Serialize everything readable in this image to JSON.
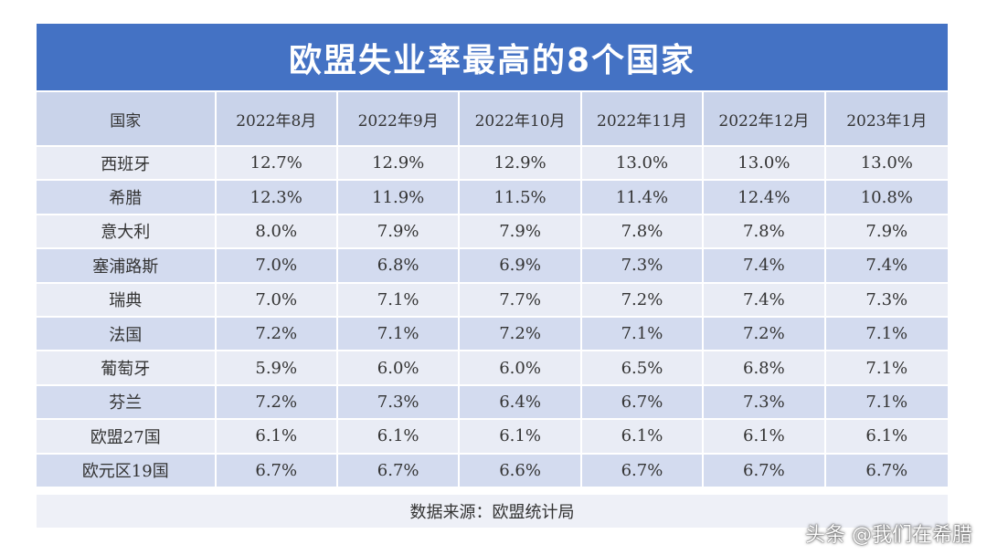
{
  "title": "欧盟失业率最高的8个国家",
  "source": "数据来源：欧盟统计局",
  "watermark": "头条 @我们在希腊",
  "colors": {
    "title_bg": "#4472c4",
    "header_bg": "#c9d3ea",
    "row_light": "#e9ecf5",
    "row_dark": "#d3dbef"
  },
  "chart_data": {
    "type": "table",
    "title": "欧盟失业率最高的8个国家",
    "columns": [
      "国家",
      "2022年8月",
      "2022年9月",
      "2022年10月",
      "2022年11月",
      "2022年12月",
      "2023年1月"
    ],
    "rows": [
      [
        "西班牙",
        "12.7%",
        "12.9%",
        "12.9%",
        "13.0%",
        "13.0%",
        "13.0%"
      ],
      [
        "希腊",
        "12.3%",
        "11.9%",
        "11.5%",
        "11.4%",
        "12.4%",
        "10.8%"
      ],
      [
        "意大利",
        "8.0%",
        "7.9%",
        "7.9%",
        "7.8%",
        "7.8%",
        "7.9%"
      ],
      [
        "塞浦路斯",
        "7.0%",
        "6.8%",
        "6.9%",
        "7.3%",
        "7.4%",
        "7.4%"
      ],
      [
        "瑞典",
        "7.0%",
        "7.1%",
        "7.7%",
        "7.2%",
        "7.4%",
        "7.3%"
      ],
      [
        "法国",
        "7.2%",
        "7.1%",
        "7.2%",
        "7.1%",
        "7.2%",
        "7.1%"
      ],
      [
        "葡萄牙",
        "5.9%",
        "6.0%",
        "6.0%",
        "6.5%",
        "6.8%",
        "7.1%"
      ],
      [
        "芬兰",
        "7.2%",
        "7.3%",
        "6.4%",
        "6.7%",
        "7.3%",
        "7.1%"
      ],
      [
        "欧盟27国",
        "6.1%",
        "6.1%",
        "6.1%",
        "6.1%",
        "6.1%",
        "6.1%"
      ],
      [
        "欧元区19国",
        "6.7%",
        "6.7%",
        "6.6%",
        "6.7%",
        "6.7%",
        "6.7%"
      ]
    ]
  }
}
